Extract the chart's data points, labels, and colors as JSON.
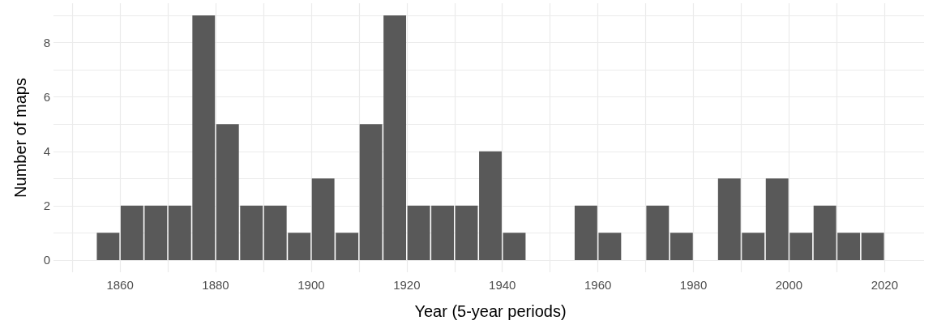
{
  "chart_data": {
    "type": "histogram",
    "xlabel": "Year (5-year periods)",
    "ylabel": "Number of maps",
    "bins": [
      1855,
      1860,
      1865,
      1870,
      1875,
      1880,
      1885,
      1890,
      1895,
      1900,
      1905,
      1910,
      1915,
      1920,
      1925,
      1930,
      1935,
      1940,
      1945,
      1950,
      1955,
      1960,
      1965,
      1970,
      1975,
      1980,
      1985,
      1990,
      1995,
      2000,
      2005,
      2010,
      2015,
      2020
    ],
    "values": [
      1,
      2,
      2,
      2,
      9,
      5,
      2,
      2,
      1,
      3,
      1,
      5,
      9,
      2,
      2,
      2,
      4,
      1,
      0,
      0,
      2,
      1,
      0,
      2,
      1,
      0,
      3,
      1,
      3,
      1,
      2,
      1,
      1
    ],
    "color": "#595959",
    "xlim": [
      1846.75,
      2028.25
    ],
    "xticks": [
      {
        "value": 1850,
        "label": null
      },
      1860,
      {
        "value": 1870,
        "label": null
      },
      1880,
      {
        "value": 1890,
        "label": null
      },
      1900,
      {
        "value": 1910,
        "label": null
      },
      1920,
      {
        "value": 1930,
        "label": null
      },
      1940,
      {
        "value": 1950,
        "label": null
      },
      1960,
      {
        "value": 1970,
        "label": null
      },
      1980,
      {
        "value": 1990,
        "label": null
      },
      2000,
      {
        "value": 2010,
        "label": null
      },
      2020
    ],
    "ylim": [
      -0.45,
      9.45
    ],
    "yticks": [
      0,
      {
        "value": 1,
        "label": null
      },
      2,
      {
        "value": 3,
        "label": null
      },
      4,
      {
        "value": 5,
        "label": null
      },
      6,
      {
        "value": 7,
        "label": null
      },
      8,
      {
        "value": 9,
        "label": null
      }
    ],
    "grid": true
  }
}
